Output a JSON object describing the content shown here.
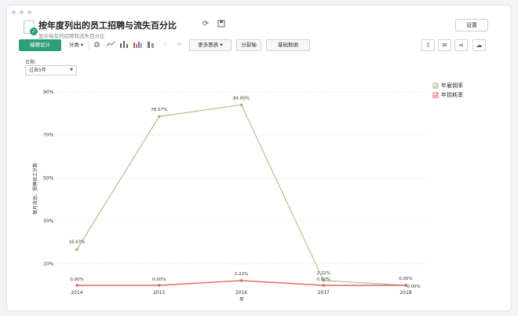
{
  "report": {
    "title": "按年度列出的员工招聘与流失百分比",
    "subtitle": "显示每年的招聘和流失百分比"
  },
  "header": {
    "settings_label": "设置"
  },
  "toolbar": {
    "edit_label": "编辑设计",
    "group_label": "分类",
    "more_charts_label": "更多图表",
    "split_label": "分裂轴",
    "basic_data_label": "基础数据"
  },
  "filter": {
    "date_label": "日期:",
    "date_value": "过去5年"
  },
  "colors": {
    "accent": "#2e9e7a",
    "hire_series": "#9cbb73",
    "attrition_series": "#e06666"
  },
  "chart_data": {
    "type": "line",
    "x": [
      "2014",
      "2015",
      "2016",
      "2017",
      "2018"
    ],
    "xlabel": "年",
    "ylabel": "每月流动、受聘员工计数",
    "yticks": [
      "10%",
      "30%",
      "50%",
      "70%",
      "90%"
    ],
    "ylim": [
      0,
      90
    ],
    "grid": true,
    "legend_position": "top-right",
    "series": [
      {
        "name": "年雇佣率",
        "values": [
          16.67,
          78.57,
          84.0,
          2.22,
          0.0
        ],
        "labels": [
          "16.67%",
          "78.57%",
          "84.00%",
          "2.22%",
          "0.00%"
        ]
      },
      {
        "name": "年损耗率",
        "values": [
          0.0,
          0.0,
          2.22,
          0.0,
          0.0
        ],
        "labels": [
          "0.00%",
          "0.00%",
          "2.22%",
          "0.00%",
          "0.00%"
        ]
      }
    ]
  }
}
